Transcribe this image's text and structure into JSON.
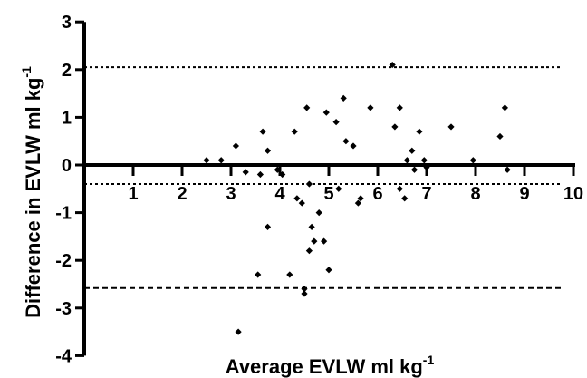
{
  "chart_data": {
    "type": "scatter",
    "xlabel": "Average EVLW ml kg",
    "xlabel_sup": "-1",
    "ylabel": "Difference in EVLW ml kg",
    "ylabel_sup": "-1",
    "xlim": [
      0,
      10
    ],
    "ylim": [
      -4,
      3
    ],
    "x_ticks": [
      1,
      2,
      3,
      4,
      5,
      6,
      7,
      8,
      9,
      10
    ],
    "y_ticks": [
      3,
      2,
      1,
      0,
      -1,
      -2,
      -3,
      -4
    ],
    "x_tick_labels": [
      "1",
      "2",
      "3",
      "4",
      "5",
      "6",
      "7",
      "8",
      "9",
      "10"
    ],
    "y_tick_labels": [
      "3",
      "2",
      "1",
      "0",
      "-1",
      "-2",
      "-3",
      "-4"
    ],
    "x_axis_crosses_at_y": 0,
    "grid": false,
    "reference_lines": [
      {
        "y": 2.05,
        "style": "dotted"
      },
      {
        "y": -0.4,
        "style": "dotted"
      },
      {
        "y": -2.58,
        "style": "dashed"
      }
    ],
    "points": [
      {
        "x": 2.5,
        "y": 0.1
      },
      {
        "x": 2.8,
        "y": 0.1
      },
      {
        "x": 3.1,
        "y": 0.4
      },
      {
        "x": 3.3,
        "y": -0.15
      },
      {
        "x": 3.15,
        "y": -3.5
      },
      {
        "x": 3.6,
        "y": -0.2
      },
      {
        "x": 3.65,
        "y": 0.7
      },
      {
        "x": 3.75,
        "y": 0.3
      },
      {
        "x": 3.75,
        "y": -1.3
      },
      {
        "x": 3.55,
        "y": -2.3
      },
      {
        "x": 3.95,
        "y": -0.1
      },
      {
        "x": 4.05,
        "y": -0.2
      },
      {
        "x": 4.2,
        "y": -2.3
      },
      {
        "x": 4.3,
        "y": 0.7
      },
      {
        "x": 4.35,
        "y": -0.7
      },
      {
        "x": 4.45,
        "y": -0.8
      },
      {
        "x": 4.55,
        "y": 1.2
      },
      {
        "x": 4.6,
        "y": -0.4
      },
      {
        "x": 4.65,
        "y": -1.3
      },
      {
        "x": 4.6,
        "y": -1.8
      },
      {
        "x": 4.5,
        "y": -2.6
      },
      {
        "x": 4.5,
        "y": -2.7
      },
      {
        "x": 4.7,
        "y": -1.6
      },
      {
        "x": 4.8,
        "y": -1.0
      },
      {
        "x": 4.9,
        "y": -1.6
      },
      {
        "x": 4.95,
        "y": 1.1
      },
      {
        "x": 5.0,
        "y": -2.2
      },
      {
        "x": 5.15,
        "y": 0.9
      },
      {
        "x": 5.2,
        "y": -0.5
      },
      {
        "x": 5.3,
        "y": 1.4
      },
      {
        "x": 5.35,
        "y": 0.5
      },
      {
        "x": 5.5,
        "y": 0.4
      },
      {
        "x": 5.6,
        "y": -0.8
      },
      {
        "x": 5.65,
        "y": -0.7
      },
      {
        "x": 5.85,
        "y": 1.2
      },
      {
        "x": 6.3,
        "y": 2.1
      },
      {
        "x": 6.35,
        "y": 0.8
      },
      {
        "x": 6.45,
        "y": 1.2
      },
      {
        "x": 6.45,
        "y": -0.5
      },
      {
        "x": 6.55,
        "y": -0.7
      },
      {
        "x": 6.6,
        "y": 0.1
      },
      {
        "x": 6.7,
        "y": 0.3
      },
      {
        "x": 6.75,
        "y": -0.1
      },
      {
        "x": 6.85,
        "y": 0.7
      },
      {
        "x": 6.95,
        "y": 0.1
      },
      {
        "x": 7.0,
        "y": -0.05
      },
      {
        "x": 7.5,
        "y": 0.8
      },
      {
        "x": 7.95,
        "y": 0.1
      },
      {
        "x": 8.5,
        "y": 0.6
      },
      {
        "x": 8.6,
        "y": 1.2
      },
      {
        "x": 8.65,
        "y": -0.1
      }
    ]
  }
}
